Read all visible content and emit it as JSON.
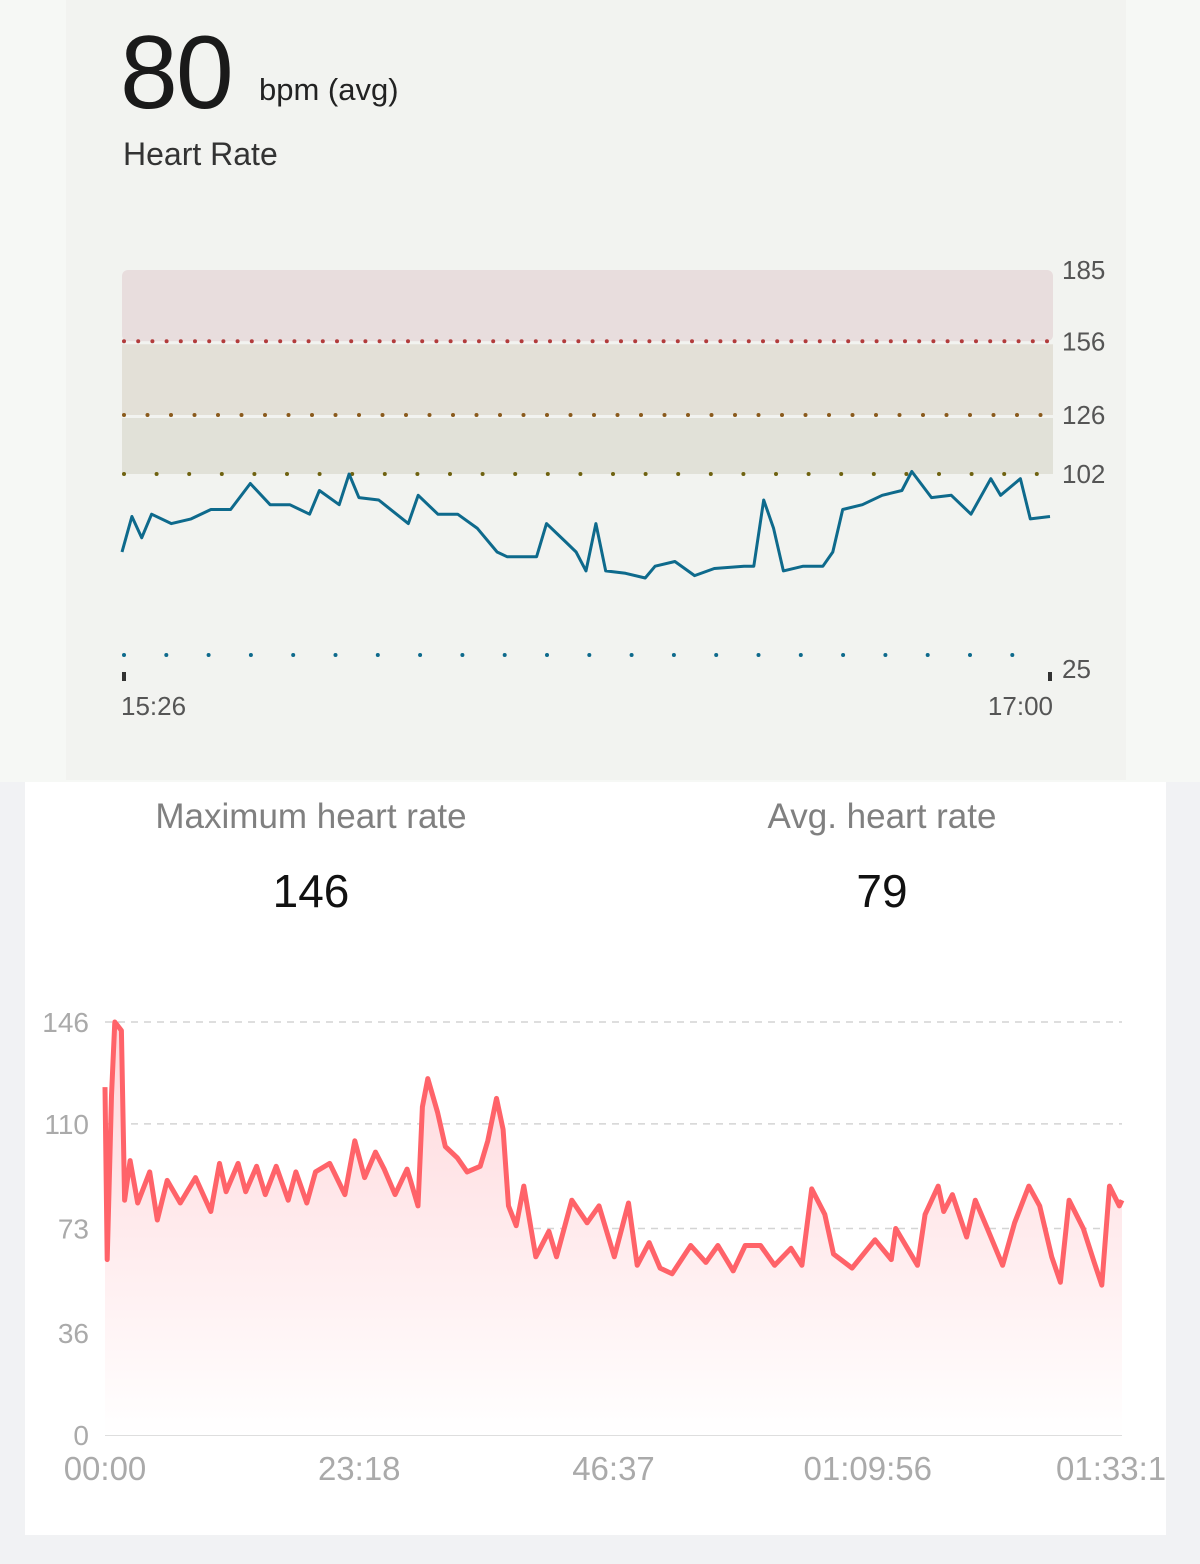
{
  "summary": {
    "value": "80",
    "unit": "bpm (avg)",
    "title": "Heart Rate"
  },
  "stats": [
    {
      "label": "Maximum heart rate",
      "value": "146"
    },
    {
      "label": "Avg. heart rate",
      "value": "79"
    }
  ],
  "colors": {
    "top_line": "#0e6a8c",
    "bottom_line": "#ff6369",
    "zone_high": "#e8dddd",
    "zone_mid": "#e3e0d7",
    "zone_low": "#e1e1d8"
  },
  "chart_data": [
    {
      "type": "line",
      "title": "Heart Rate",
      "ylim": [
        25,
        185
      ],
      "y_ticks": [
        "185",
        "156",
        "126",
        "102",
        "25"
      ],
      "x_ticks": [
        "15:26",
        "17:00"
      ],
      "xlim": [
        "15:26",
        "17:00"
      ],
      "zones": [
        [
          156,
          185
        ],
        [
          126,
          156
        ],
        [
          102,
          126
        ]
      ],
      "grid": false,
      "points": [
        [
          "15:26",
          69
        ],
        [
          "15:27",
          84
        ],
        [
          "15:28",
          75
        ],
        [
          "15:29",
          85
        ],
        [
          "15:31",
          81
        ],
        [
          "15:33",
          83
        ],
        [
          "15:35",
          87
        ],
        [
          "15:37",
          87
        ],
        [
          "15:39",
          98
        ],
        [
          "15:41",
          89
        ],
        [
          "15:43",
          89
        ],
        [
          "15:45",
          85
        ],
        [
          "15:46",
          95
        ],
        [
          "15:48",
          89
        ],
        [
          "15:49",
          102
        ],
        [
          "15:50",
          92
        ],
        [
          "15:52",
          91
        ],
        [
          "15:55",
          81
        ],
        [
          "15:56",
          93
        ],
        [
          "15:58",
          85
        ],
        [
          "16:00",
          85
        ],
        [
          "16:02",
          79
        ],
        [
          "16:04",
          69
        ],
        [
          "16:05",
          67
        ],
        [
          "16:08",
          67
        ],
        [
          "16:09",
          81
        ],
        [
          "16:11",
          73
        ],
        [
          "16:12",
          69
        ],
        [
          "16:13",
          61
        ],
        [
          "16:14",
          81
        ],
        [
          "16:15",
          61
        ],
        [
          "16:17",
          60
        ],
        [
          "16:19",
          58
        ],
        [
          "16:20",
          63
        ],
        [
          "16:22",
          65
        ],
        [
          "16:24",
          59
        ],
        [
          "16:26",
          62
        ],
        [
          "16:29",
          63
        ],
        [
          "16:30",
          63
        ],
        [
          "16:31",
          91
        ],
        [
          "16:32",
          79
        ],
        [
          "16:33",
          61
        ],
        [
          "16:35",
          63
        ],
        [
          "16:37",
          63
        ],
        [
          "16:38",
          69
        ],
        [
          "16:39",
          87
        ],
        [
          "16:41",
          89
        ],
        [
          "16:43",
          93
        ],
        [
          "16:45",
          95
        ],
        [
          "16:46",
          103
        ],
        [
          "16:48",
          92
        ],
        [
          "16:50",
          93
        ],
        [
          "16:52",
          85
        ],
        [
          "16:54",
          100
        ],
        [
          "16:55",
          93
        ],
        [
          "16:57",
          100
        ],
        [
          "16:58",
          83
        ],
        [
          "17:00",
          84
        ]
      ]
    },
    {
      "type": "area",
      "ylim": [
        0,
        146
      ],
      "y_ticks": [
        "146",
        "110",
        "73",
        "36",
        "0"
      ],
      "x_ticks": [
        "00:00",
        "23:18",
        "46:37",
        "01:09:56",
        "01:33:1"
      ],
      "xlim": [
        "00:00",
        "01:33:15"
      ],
      "grid": true,
      "points": [
        [
          "00:00",
          123
        ],
        [
          "00:12",
          62
        ],
        [
          "00:36",
          120
        ],
        [
          "00:54",
          146
        ],
        [
          "01:30",
          143
        ],
        [
          "01:48",
          83
        ],
        [
          "02:18",
          97
        ],
        [
          "03:00",
          82
        ],
        [
          "04:06",
          93
        ],
        [
          "04:48",
          76
        ],
        [
          "05:42",
          90
        ],
        [
          "06:54",
          82
        ],
        [
          "08:18",
          91
        ],
        [
          "09:42",
          79
        ],
        [
          "10:30",
          96
        ],
        [
          "11:06",
          86
        ],
        [
          "12:12",
          96
        ],
        [
          "12:54",
          86
        ],
        [
          "13:54",
          95
        ],
        [
          "14:42",
          85
        ],
        [
          "15:42",
          95
        ],
        [
          "16:48",
          83
        ],
        [
          "17:30",
          93
        ],
        [
          "18:30",
          82
        ],
        [
          "19:18",
          93
        ],
        [
          "20:36",
          96
        ],
        [
          "22:00",
          85
        ],
        [
          "22:54",
          104
        ],
        [
          "23:48",
          91
        ],
        [
          "24:48",
          100
        ],
        [
          "25:36",
          94
        ],
        [
          "26:36",
          85
        ],
        [
          "27:42",
          94
        ],
        [
          "28:42",
          81
        ],
        [
          "29:06",
          116
        ],
        [
          "29:36",
          126
        ],
        [
          "30:30",
          114
        ],
        [
          "31:12",
          102
        ],
        [
          "32:18",
          98
        ],
        [
          "33:12",
          93
        ],
        [
          "34:24",
          95
        ],
        [
          "35:06",
          104
        ],
        [
          "35:54",
          119
        ],
        [
          "36:30",
          108
        ],
        [
          "37:00",
          81
        ],
        [
          "37:42",
          74
        ],
        [
          "38:24",
          88
        ],
        [
          "39:30",
          63
        ],
        [
          "40:42",
          72
        ],
        [
          "41:24",
          63
        ],
        [
          "42:48",
          83
        ],
        [
          "44:12",
          75
        ],
        [
          "45:18",
          81
        ],
        [
          "46:42",
          63
        ],
        [
          "48:00",
          82
        ],
        [
          "48:48",
          60
        ],
        [
          "49:54",
          68
        ],
        [
          "50:54",
          59
        ],
        [
          "52:00",
          57
        ],
        [
          "53:42",
          67
        ],
        [
          "55:06",
          61
        ],
        [
          "56:12",
          67
        ],
        [
          "57:36",
          58
        ],
        [
          "58:42",
          67
        ],
        [
          "01:00:06",
          67
        ],
        [
          "01:01:24",
          60
        ],
        [
          "01:02:54",
          66
        ],
        [
          "01:03:54",
          60
        ],
        [
          "01:04:48",
          87
        ],
        [
          "01:06:00",
          78
        ],
        [
          "01:06:48",
          64
        ],
        [
          "01:08:30",
          59
        ],
        [
          "01:10:36",
          69
        ],
        [
          "01:12:06",
          62
        ],
        [
          "01:12:30",
          73
        ],
        [
          "01:14:30",
          60
        ],
        [
          "01:15:12",
          78
        ],
        [
          "01:16:24",
          88
        ],
        [
          "01:16:54",
          79
        ],
        [
          "01:17:42",
          85
        ],
        [
          "01:19:00",
          70
        ],
        [
          "01:19:48",
          83
        ],
        [
          "01:20:54",
          73
        ],
        [
          "01:22:18",
          60
        ],
        [
          "01:23:24",
          75
        ],
        [
          "01:24:42",
          88
        ],
        [
          "01:25:42",
          81
        ],
        [
          "01:26:48",
          63
        ],
        [
          "01:27:36",
          54
        ],
        [
          "01:28:24",
          83
        ],
        [
          "01:29:42",
          73
        ],
        [
          "01:30:42",
          61
        ],
        [
          "01:31:24",
          53
        ],
        [
          "01:32:06",
          88
        ],
        [
          "01:33:00",
          81
        ],
        [
          "01:33:15",
          83
        ]
      ]
    }
  ]
}
